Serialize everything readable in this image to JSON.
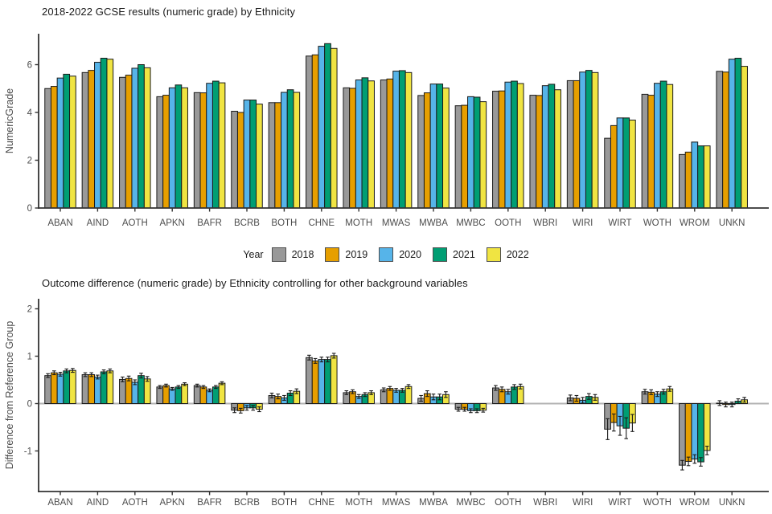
{
  "page": {
    "background": "#ffffff",
    "text_color": "#1a1a1a",
    "axis_text_color": "#4d4d4d",
    "axis_line_color": "#333333",
    "bar_outline_color": "#1a1a1a",
    "zero_line_color": "#b3b3b3"
  },
  "legend": {
    "title": "Year",
    "position": "bottom-of-first-chart",
    "entries": [
      {
        "label": "2018",
        "color": "#999999"
      },
      {
        "label": "2019",
        "color": "#E69F00"
      },
      {
        "label": "2020",
        "color": "#56B4E9"
      },
      {
        "label": "2021",
        "color": "#009E73"
      },
      {
        "label": "2022",
        "color": "#F0E442"
      }
    ]
  },
  "chart_data": [
    {
      "type": "bar",
      "title": "2018-2022 GCSE results (numeric grade) by Ethnicity",
      "xlabel": "",
      "ylabel": "NumericGrade",
      "ylim": [
        0,
        7.3
      ],
      "yticks": [
        0,
        2,
        4,
        6
      ],
      "grid": false,
      "legend_position": "bottom",
      "categories": [
        "ABAN",
        "AIND",
        "AOTH",
        "APKN",
        "BAFR",
        "BCRB",
        "BOTH",
        "CHNE",
        "MOTH",
        "MWAS",
        "MWBA",
        "MWBC",
        "OOTH",
        "WBRI",
        "WIRI",
        "WIRT",
        "WOTH",
        "WROM",
        "UNKN"
      ],
      "series": [
        {
          "name": "2018",
          "color": "#999999",
          "values": [
            5.0,
            5.67,
            5.47,
            4.66,
            4.83,
            4.05,
            4.41,
            6.36,
            5.03,
            5.36,
            4.71,
            4.28,
            4.89,
            4.72,
            5.33,
            2.92,
            4.76,
            2.24,
            5.72
          ]
        },
        {
          "name": "2019",
          "color": "#E69F00",
          "values": [
            5.09,
            5.76,
            5.56,
            4.72,
            4.82,
            4.0,
            4.41,
            6.41,
            5.01,
            5.4,
            4.82,
            4.3,
            4.9,
            4.71,
            5.33,
            3.45,
            4.72,
            2.34,
            5.69
          ]
        },
        {
          "name": "2020",
          "color": "#56B4E9",
          "values": [
            5.44,
            6.1,
            5.85,
            5.03,
            5.22,
            4.52,
            4.84,
            6.77,
            5.36,
            5.73,
            5.19,
            4.66,
            5.27,
            5.12,
            5.69,
            3.77,
            5.22,
            2.76,
            6.23
          ]
        },
        {
          "name": "2021",
          "color": "#009E73",
          "values": [
            5.6,
            6.27,
            6.0,
            5.15,
            5.31,
            4.52,
            4.95,
            6.88,
            5.45,
            5.75,
            5.19,
            4.64,
            5.31,
            5.18,
            5.76,
            3.77,
            5.31,
            2.6,
            6.27
          ]
        },
        {
          "name": "2022",
          "color": "#F0E442",
          "values": [
            5.52,
            6.23,
            5.87,
            5.03,
            5.24,
            4.35,
            4.84,
            6.68,
            5.32,
            5.67,
            5.02,
            4.45,
            5.21,
            4.95,
            5.67,
            3.68,
            5.17,
            2.6,
            5.93
          ]
        }
      ]
    },
    {
      "type": "bar",
      "title": "Outcome difference (numeric grade) by Ethnicity controlling for other background variables",
      "xlabel": "",
      "ylabel": "Difference from Reference Group",
      "ylim": [
        -1.9,
        2.15
      ],
      "yticks": [
        2,
        1,
        0,
        -1
      ],
      "grid": false,
      "zero_line": true,
      "error_bars": true,
      "reference_category": "WBRI",
      "categories": [
        "ABAN",
        "AIND",
        "AOTH",
        "APKN",
        "BAFR",
        "BCRB",
        "BOTH",
        "CHNE",
        "MOTH",
        "MWAS",
        "MWBA",
        "MWBC",
        "OOTH",
        "WBRI",
        "WIRI",
        "WIRT",
        "WOTH",
        "WROM",
        "UNKN"
      ],
      "series": [
        {
          "name": "2018",
          "color": "#999999",
          "values": [
            0.59,
            0.61,
            0.51,
            0.35,
            0.38,
            -0.14,
            0.17,
            0.97,
            0.23,
            0.29,
            0.11,
            -0.12,
            0.33,
            null,
            0.12,
            -0.54,
            0.25,
            -1.3,
            0.01
          ],
          "errors": [
            0.04,
            0.04,
            0.05,
            0.03,
            0.03,
            0.05,
            0.05,
            0.05,
            0.04,
            0.04,
            0.06,
            0.04,
            0.05,
            null,
            0.06,
            0.22,
            0.05,
            0.1,
            0.05
          ]
        },
        {
          "name": "2019",
          "color": "#E69F00",
          "values": [
            0.65,
            0.61,
            0.53,
            0.38,
            0.35,
            -0.15,
            0.15,
            0.9,
            0.25,
            0.32,
            0.21,
            -0.12,
            0.3,
            null,
            0.11,
            -0.4,
            0.24,
            -1.22,
            -0.02
          ],
          "errors": [
            0.04,
            0.04,
            0.05,
            0.03,
            0.03,
            0.05,
            0.05,
            0.05,
            0.04,
            0.04,
            0.06,
            0.04,
            0.05,
            null,
            0.06,
            0.18,
            0.05,
            0.09,
            0.05
          ]
        },
        {
          "name": "2020",
          "color": "#56B4E9",
          "values": [
            0.62,
            0.56,
            0.45,
            0.31,
            0.28,
            -0.09,
            0.12,
            0.93,
            0.15,
            0.28,
            0.14,
            -0.15,
            0.25,
            null,
            0.07,
            -0.47,
            0.2,
            -1.17,
            -0.02
          ],
          "errors": [
            0.04,
            0.04,
            0.05,
            0.03,
            0.03,
            0.05,
            0.05,
            0.05,
            0.04,
            0.04,
            0.06,
            0.04,
            0.05,
            null,
            0.06,
            0.2,
            0.05,
            0.09,
            0.05
          ]
        },
        {
          "name": "2021",
          "color": "#009E73",
          "values": [
            0.69,
            0.67,
            0.59,
            0.35,
            0.35,
            -0.09,
            0.22,
            0.93,
            0.19,
            0.28,
            0.14,
            -0.15,
            0.35,
            null,
            0.15,
            -0.52,
            0.25,
            -1.23,
            0.05
          ],
          "errors": [
            0.04,
            0.04,
            0.05,
            0.03,
            0.03,
            0.05,
            0.05,
            0.05,
            0.04,
            0.04,
            0.06,
            0.04,
            0.05,
            null,
            0.06,
            0.22,
            0.05,
            0.09,
            0.05
          ]
        },
        {
          "name": "2022",
          "color": "#F0E442",
          "values": [
            0.7,
            0.69,
            0.52,
            0.41,
            0.43,
            -0.12,
            0.26,
            1.01,
            0.23,
            0.36,
            0.19,
            -0.14,
            0.36,
            null,
            0.13,
            -0.41,
            0.31,
            -0.99,
            0.08
          ],
          "errors": [
            0.04,
            0.04,
            0.05,
            0.03,
            0.03,
            0.05,
            0.05,
            0.05,
            0.04,
            0.04,
            0.06,
            0.04,
            0.05,
            null,
            0.06,
            0.18,
            0.05,
            0.09,
            0.05
          ]
        }
      ]
    }
  ]
}
